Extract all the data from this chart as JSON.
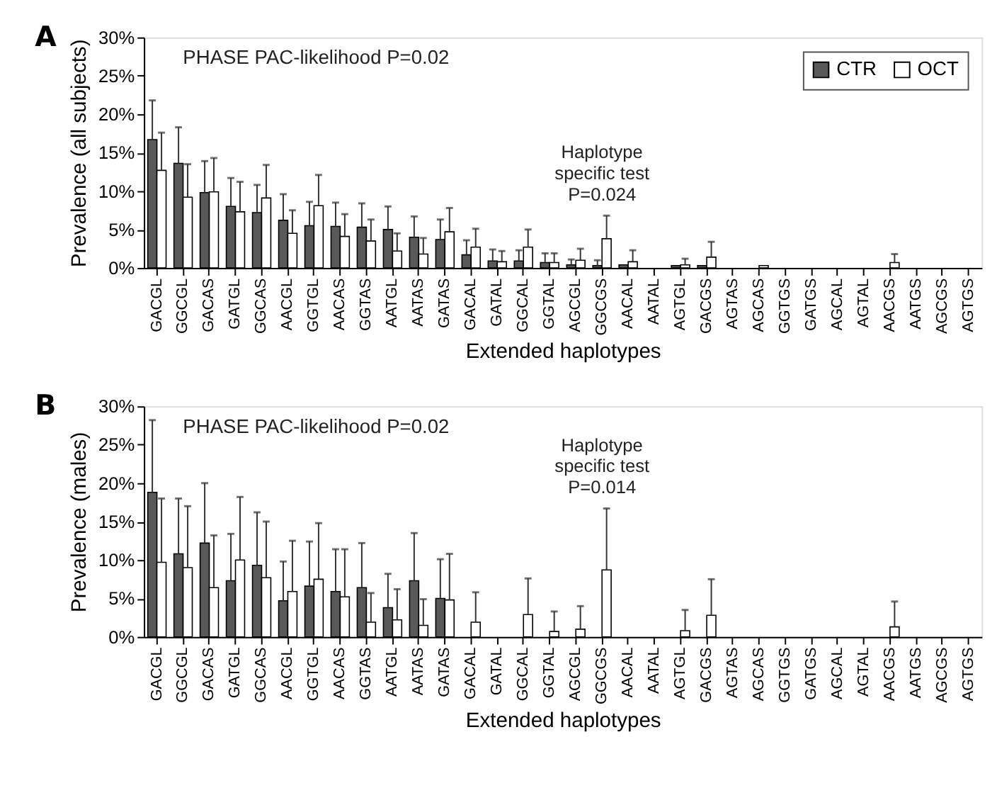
{
  "chart_data": [
    {
      "type": "bar",
      "xlabel": "Extended haplotypes",
      "ylabel": "Prevalence (all subjects)",
      "categories": [
        "GACGL",
        "GGCGL",
        "GACAS",
        "GATGL",
        "GGCAS",
        "AACGL",
        "GGTGL",
        "AACAS",
        "GGTAS",
        "AATGL",
        "AATAS",
        "GATAS",
        "GACAL",
        "GATAL",
        "GGCAL",
        "GGTAL",
        "AGCGL",
        "GGCGS",
        "AACAL",
        "AATAL",
        "AGTGL",
        "GACGS",
        "AGTAS",
        "AGCAS",
        "GGTGS",
        "GATGS",
        "AGCAL",
        "AGTAL",
        "AACGS",
        "AATGS",
        "AGCGS",
        "AGTGS"
      ],
      "series": [
        {
          "name": "CTR",
          "color": "#595959",
          "values": [
            16.7,
            13.6,
            9.8,
            8.0,
            7.2,
            6.2,
            5.5,
            5.4,
            5.3,
            5.0,
            4.0,
            3.7,
            1.7,
            0.9,
            0.9,
            0.7,
            0.4,
            0.3,
            0.4,
            null,
            0.3,
            0.3,
            null,
            null,
            null,
            null,
            null,
            null,
            null,
            null,
            null,
            null
          ],
          "errors": [
            [
              16.7,
              21.8
            ],
            [
              13.6,
              18.3
            ],
            [
              9.8,
              13.9
            ],
            [
              8.0,
              11.7
            ],
            [
              7.2,
              10.8
            ],
            [
              6.2,
              9.6
            ],
            [
              5.5,
              8.6
            ],
            [
              5.4,
              8.5
            ],
            [
              5.3,
              8.4
            ],
            [
              5.0,
              8.0
            ],
            [
              4.0,
              6.7
            ],
            [
              3.7,
              6.3
            ],
            [
              1.7,
              3.6
            ],
            [
              0.9,
              2.4
            ],
            [
              0.9,
              2.3
            ],
            [
              0.7,
              1.9
            ],
            [
              0.4,
              1.1
            ],
            [
              0.3,
              1.0
            ],
            null,
            null,
            null,
            null,
            null,
            null,
            null,
            null,
            null,
            null,
            null,
            null,
            null,
            null
          ]
        },
        {
          "name": "OCT",
          "color": "#ffffff",
          "values": [
            12.7,
            9.2,
            9.9,
            7.3,
            9.1,
            4.5,
            8.1,
            4.1,
            3.5,
            2.2,
            1.8,
            4.7,
            2.7,
            0.8,
            2.7,
            0.7,
            1.0,
            3.8,
            0.8,
            null,
            0.4,
            1.4,
            null,
            0.3,
            null,
            null,
            null,
            null,
            0.7,
            null,
            null,
            null
          ],
          "errors": [
            [
              12.7,
              17.6
            ],
            [
              9.2,
              13.5
            ],
            [
              9.9,
              14.3
            ],
            [
              7.3,
              11.2
            ],
            [
              9.1,
              13.4
            ],
            [
              4.5,
              7.5
            ],
            [
              8.1,
              12.1
            ],
            [
              4.1,
              7.0
            ],
            [
              3.5,
              6.3
            ],
            [
              2.2,
              4.5
            ],
            [
              1.8,
              3.9
            ],
            [
              4.7,
              7.8
            ],
            [
              2.7,
              5.1
            ],
            [
              0.8,
              2.2
            ],
            [
              2.7,
              5.0
            ],
            [
              0.7,
              1.9
            ],
            [
              1.0,
              2.5
            ],
            [
              3.8,
              6.8
            ],
            [
              0.8,
              2.3
            ],
            null,
            [
              0.4,
              1.2
            ],
            [
              1.4,
              3.4
            ],
            null,
            null,
            null,
            null,
            null,
            null,
            [
              0.7,
              1.8
            ],
            null,
            null,
            null
          ]
        }
      ],
      "ylim": [
        0,
        30
      ],
      "yticks": [
        {
          "value": 0,
          "label": "0%"
        },
        {
          "value": 5,
          "label": "5%"
        },
        {
          "value": 10,
          "label": "10%"
        },
        {
          "value": 15,
          "label": "15%"
        },
        {
          "value": 20,
          "label": "20%"
        },
        {
          "value": 25,
          "label": "25%"
        },
        {
          "value": 30,
          "label": "30%"
        }
      ],
      "legend": "top right",
      "grid": false,
      "annotations": [
        "A",
        "PHASE PAC-likelihood P=0.02",
        {
          "text": "Haplotype\nspecific test\nP=0.024",
          "x": "GGCGS",
          "y": 6.8
        }
      ]
    },
    {
      "type": "bar",
      "xlabel": "Extended haplotypes",
      "ylabel": "Prevalence (males)",
      "categories": [
        "GACGL",
        "GGCGL",
        "GACAS",
        "GATGL",
        "GGCAS",
        "AACGL",
        "GGTGL",
        "AACAS",
        "GGTAS",
        "AATGL",
        "AATAS",
        "GATAS",
        "GACAL",
        "GATAL",
        "GGCAL",
        "GGTAL",
        "AGCGL",
        "GGCGS",
        "AACAL",
        "AATAL",
        "AGTGL",
        "GACGS",
        "AGTAS",
        "AGCAS",
        "GGTGS",
        "GATGS",
        "AGCAL",
        "AGTAL",
        "AACGS",
        "AATGS",
        "AGCGS",
        "AGTGS"
      ],
      "series": [
        {
          "name": "CTR",
          "color": "#595959",
          "values": [
            18.8,
            10.8,
            12.2,
            7.3,
            9.3,
            4.7,
            6.6,
            5.9,
            6.4,
            3.8,
            7.3,
            5.0,
            null,
            null,
            null,
            null,
            null,
            null,
            null,
            null,
            null,
            null,
            null,
            null,
            null,
            null,
            null,
            null,
            null,
            null,
            null,
            null
          ],
          "errors": [
            [
              18.8,
              28.2
            ],
            [
              10.8,
              18.0
            ],
            [
              12.2,
              20.0
            ],
            [
              7.3,
              13.4
            ],
            [
              9.3,
              16.2
            ],
            [
              4.7,
              9.8
            ],
            [
              6.6,
              12.4
            ],
            [
              5.9,
              11.4
            ],
            [
              6.4,
              12.2
            ],
            [
              3.8,
              8.2
            ],
            [
              7.3,
              13.5
            ],
            [
              5.0,
              10.1
            ],
            null,
            null,
            null,
            null,
            null,
            null,
            null,
            null,
            null,
            null,
            null,
            null,
            null,
            null,
            null,
            null,
            null,
            null,
            null,
            null
          ]
        },
        {
          "name": "OCT",
          "color": "#ffffff",
          "values": [
            9.7,
            9.0,
            6.4,
            10.0,
            7.7,
            5.9,
            7.5,
            5.2,
            1.9,
            2.2,
            1.5,
            4.8,
            1.9,
            null,
            2.9,
            0.7,
            1.0,
            8.7,
            null,
            null,
            0.8,
            2.8,
            null,
            null,
            null,
            null,
            null,
            null,
            1.3,
            null,
            null,
            null
          ],
          "errors": [
            [
              9.7,
              18.0
            ],
            [
              9.0,
              17.0
            ],
            [
              6.4,
              13.2
            ],
            [
              10.0,
              18.2
            ],
            [
              7.7,
              15.0
            ],
            [
              5.9,
              12.5
            ],
            [
              7.5,
              14.8
            ],
            [
              5.2,
              11.4
            ],
            [
              1.9,
              5.7
            ],
            [
              2.2,
              6.2
            ],
            [
              1.5,
              4.9
            ],
            [
              4.8,
              10.8
            ],
            [
              1.9,
              5.8
            ],
            null,
            [
              2.9,
              7.6
            ],
            [
              0.7,
              3.3
            ],
            [
              1.0,
              4.0
            ],
            [
              8.7,
              16.7
            ],
            null,
            null,
            [
              0.8,
              3.5
            ],
            [
              2.8,
              7.5
            ],
            null,
            null,
            null,
            null,
            null,
            null,
            [
              1.3,
              4.6
            ],
            null,
            null,
            null
          ]
        }
      ],
      "ylim": [
        0,
        30
      ],
      "yticks": [
        {
          "value": 0,
          "label": "0%"
        },
        {
          "value": 5,
          "label": "5%"
        },
        {
          "value": 10,
          "label": "10%"
        },
        {
          "value": 15,
          "label": "15%"
        },
        {
          "value": 20,
          "label": "20%"
        },
        {
          "value": 25,
          "label": "25%"
        },
        {
          "value": 30,
          "label": "30%"
        }
      ],
      "grid": false,
      "annotations": [
        "B",
        "PHASE PAC-likelihood P=0.02",
        {
          "text": "Haplotype\nspecific test\nP=0.014",
          "x": "GGCGS",
          "y": 16.7
        }
      ]
    }
  ]
}
